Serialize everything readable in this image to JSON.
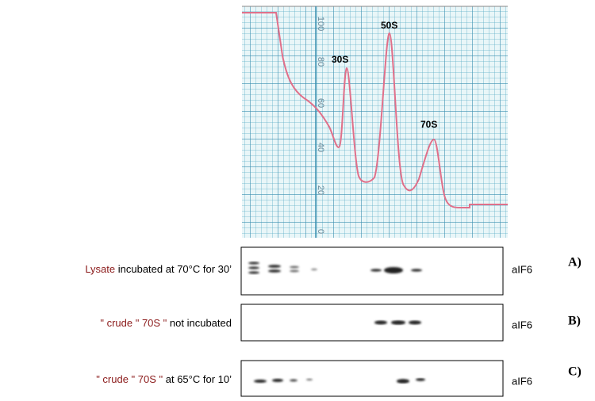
{
  "trace": {
    "y_axis_labels": [
      "100",
      "80",
      "60",
      "40",
      "20",
      "0"
    ],
    "peaks": [
      "30S",
      "50S",
      "70S"
    ]
  },
  "blots": [
    {
      "label_highlight": "Lysate",
      "label_rest": " incubated at 70°C for 30’",
      "protein": "aIF6",
      "panel": "A)"
    },
    {
      "label_highlight": "\" crude \" 70S \"",
      "label_rest": " not incubated",
      "protein": "aIF6",
      "panel": "B)"
    },
    {
      "label_highlight": "\" crude \" 70S \"",
      "label_rest": " at 65°C for 10’",
      "protein": "aIF6",
      "panel": "C)"
    }
  ]
}
